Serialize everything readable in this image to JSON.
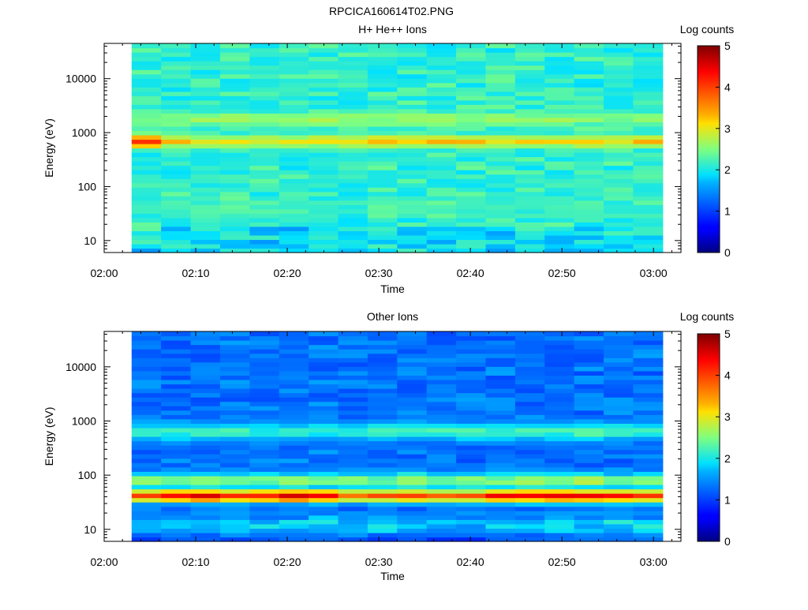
{
  "figure_title": "RPCICA160614T02.PNG",
  "chart_data": [
    {
      "type": "heatmap",
      "title": "H+ He++ Ions",
      "xlabel": "Time",
      "ylabel": "Energy (eV)",
      "colorbar_label": "Log counts",
      "colorbar_ticks": [
        "0",
        "1",
        "2",
        "3",
        "4",
        "5"
      ],
      "colorbar_range": [
        0,
        5
      ],
      "y_scale": "log",
      "y_range_eV": [
        6,
        45000
      ],
      "y_ticks": [
        {
          "value": 10,
          "label": "10"
        },
        {
          "value": 100,
          "label": "100"
        },
        {
          "value": 1000,
          "label": "1000"
        },
        {
          "value": 10000,
          "label": "10000"
        }
      ],
      "x_range": [
        "02:00",
        "03:03"
      ],
      "x_ticks": [
        "02:00",
        "02:10",
        "02:20",
        "02:30",
        "02:40",
        "02:50",
        "03:00"
      ],
      "data_start": "02:03",
      "data_end": "03:01",
      "n_time_bins": 18,
      "n_energy_bins": 48,
      "background_level": 2.0,
      "features": [
        {
          "name": "ion beam",
          "energy_eV": 700,
          "log_counts": 3.1,
          "note": "strongest ~850 eV at 02:03-02:06"
        },
        {
          "name": "upper line",
          "energy_eV": 1800,
          "log_counts": 2.6
        },
        {
          "name": "low energy line",
          "energy_eV": 42,
          "log_counts": 2.2
        },
        {
          "name": "low energy floor",
          "energy_eV": 10,
          "log_counts": 1.0
        }
      ]
    },
    {
      "type": "heatmap",
      "title": "Other Ions",
      "xlabel": "Time",
      "ylabel": "Energy (eV)",
      "colorbar_label": "Log counts",
      "colorbar_ticks": [
        "0",
        "1",
        "2",
        "3",
        "4",
        "5"
      ],
      "colorbar_range": [
        0,
        5
      ],
      "y_scale": "log",
      "y_range_eV": [
        6,
        45000
      ],
      "y_ticks": [
        {
          "value": 10,
          "label": "10"
        },
        {
          "value": 100,
          "label": "100"
        },
        {
          "value": 1000,
          "label": "1000"
        },
        {
          "value": 10000,
          "label": "10000"
        }
      ],
      "x_range": [
        "02:00",
        "03:03"
      ],
      "x_ticks": [
        "02:00",
        "02:10",
        "02:20",
        "02:30",
        "02:40",
        "02:50",
        "03:00"
      ],
      "data_start": "02:03",
      "data_end": "03:01",
      "n_time_bins": 18,
      "n_energy_bins": 48,
      "background_level": 1.2,
      "features": [
        {
          "name": "intense band",
          "energy_eV": 42,
          "log_counts": 4.2
        },
        {
          "name": "band halo",
          "energy_eV": 80,
          "log_counts": 2.6
        },
        {
          "name": "mid line",
          "energy_eV": 650,
          "log_counts": 2.2
        },
        {
          "name": "low energy floor",
          "energy_eV": 12,
          "log_counts": 2.0
        }
      ]
    }
  ]
}
